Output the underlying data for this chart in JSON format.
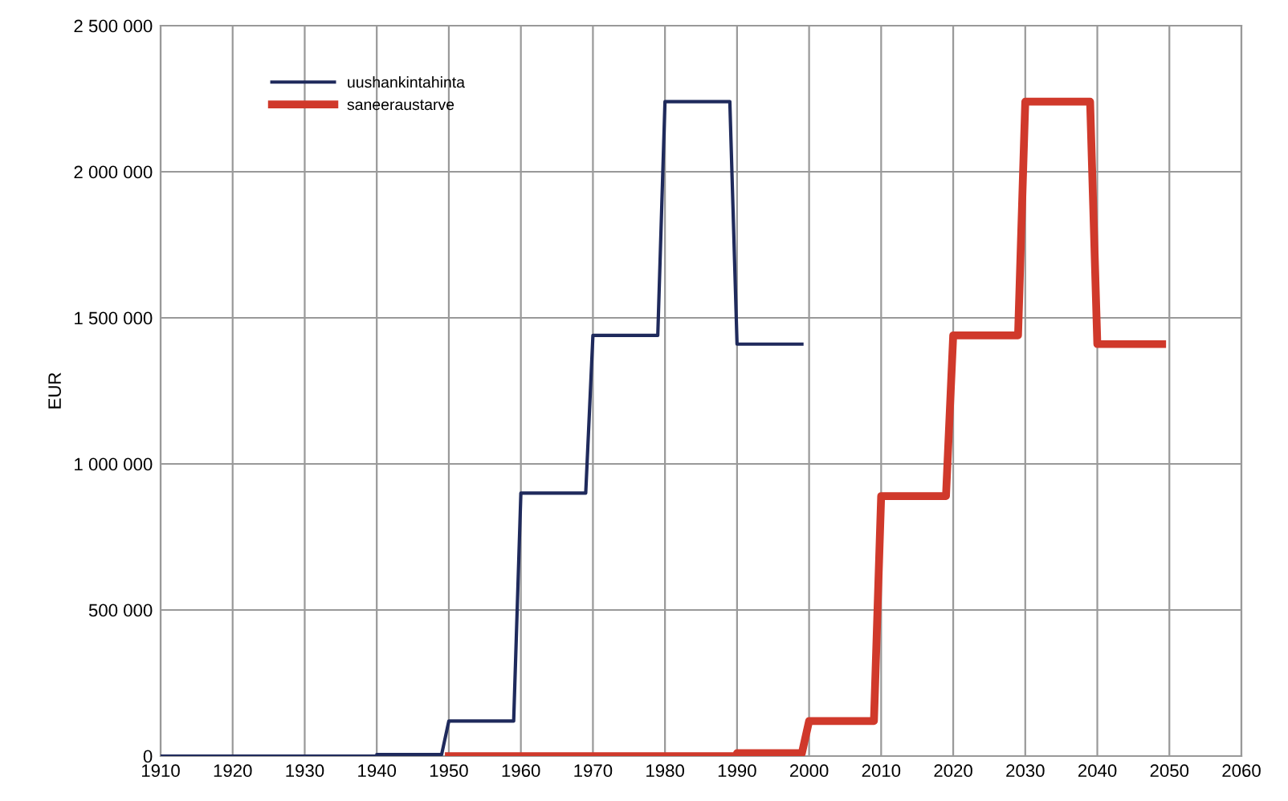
{
  "chart_data": {
    "type": "line",
    "ylabel": "EUR",
    "series": [
      {
        "name": "uushankintahinta",
        "color": "#1f2a5c",
        "x": [
          1910,
          1940,
          1940,
          1949,
          1950,
          1959,
          1960,
          1969,
          1970,
          1979,
          1980,
          1989,
          1990,
          1999
        ],
        "values": [
          0,
          0,
          5000,
          5000,
          120000,
          120000,
          900000,
          900000,
          1440000,
          1440000,
          2240000,
          2240000,
          1410000,
          1410000
        ]
      },
      {
        "name": "saneeraustarve",
        "color": "#d0392b",
        "x": [
          1950,
          1990,
          1990,
          1999,
          2000,
          2009,
          2010,
          2019,
          2020,
          2029,
          2030,
          2039,
          2040,
          2049
        ],
        "values": [
          0,
          0,
          10000,
          10000,
          120000,
          120000,
          890000,
          890000,
          1440000,
          1440000,
          2240000,
          2240000,
          1410000,
          1410000
        ]
      }
    ],
    "xlim": [
      1910,
      2060
    ],
    "xticks": [
      1910,
      1920,
      1930,
      1940,
      1950,
      1960,
      1970,
      1980,
      1990,
      2000,
      2010,
      2020,
      2030,
      2040,
      2050,
      2060
    ],
    "ylim": [
      0,
      2500000
    ],
    "yticks": [
      0,
      {
        "value": 500000,
        "label": "500 000"
      },
      {
        "value": 1000000,
        "label": "1 000 000"
      },
      {
        "value": 1500000,
        "label": "1 500 000"
      },
      {
        "value": 2000000,
        "label": "2 000 000"
      },
      {
        "value": 2500000,
        "label": "2 500 000"
      }
    ],
    "grid": true,
    "legend": "top left",
    "line_style": "solid",
    "marker": "none"
  }
}
